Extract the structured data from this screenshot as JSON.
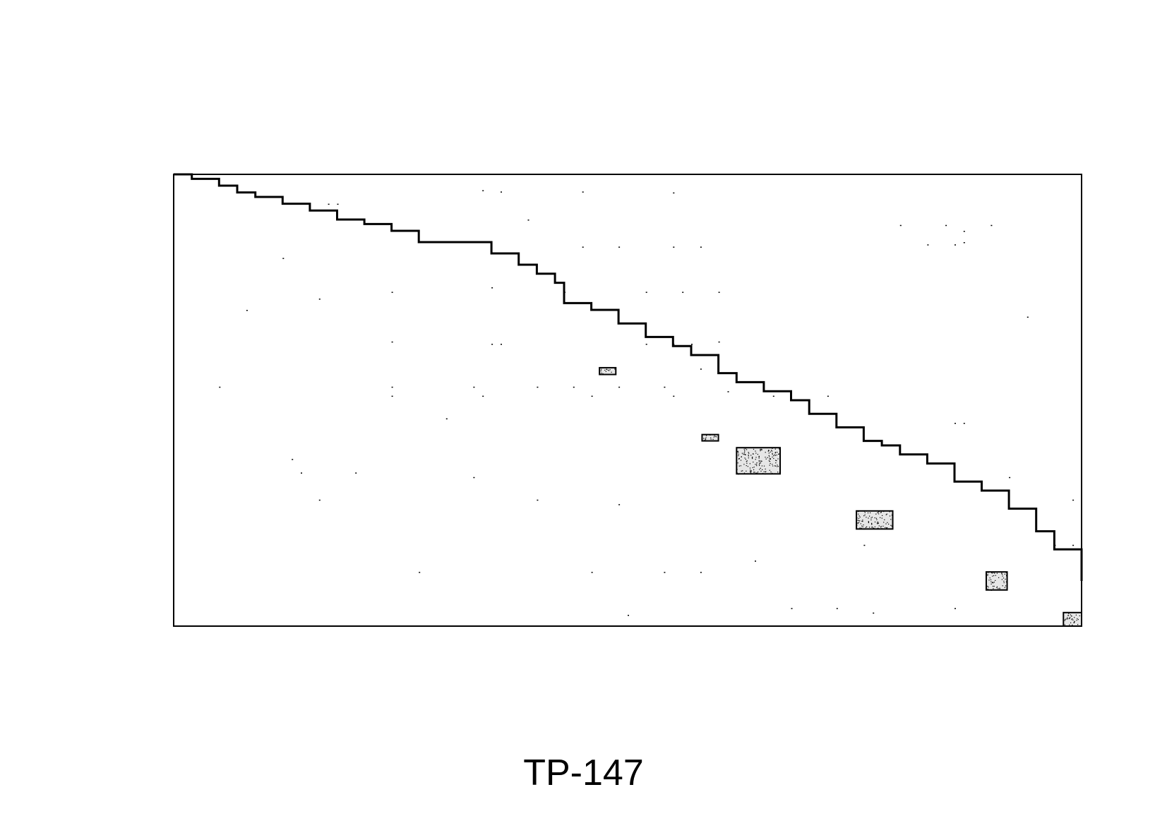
{
  "caption": "TP-147",
  "colors": {
    "ink": "#000000",
    "background": "#ffffff",
    "block_fill": "#e6e6e6"
  },
  "chart_data": {
    "type": "scatter",
    "description_kind": "sparse-matrix-pattern",
    "title": "",
    "xlabel": "",
    "ylabel": "",
    "xlim": [
      0,
      1
    ],
    "ylim": [
      0,
      1
    ],
    "y_direction": "down",
    "axes_visible": false,
    "grid": false,
    "legend": "none",
    "diagonal_band": [
      [
        0.0,
        0.0
      ],
      [
        0.02,
        0.01
      ],
      [
        0.05,
        0.025
      ],
      [
        0.07,
        0.04
      ],
      [
        0.09,
        0.05
      ],
      [
        0.12,
        0.065
      ],
      [
        0.15,
        0.08
      ],
      [
        0.18,
        0.1
      ],
      [
        0.21,
        0.11
      ],
      [
        0.24,
        0.125
      ],
      [
        0.27,
        0.15
      ],
      [
        0.32,
        0.15
      ],
      [
        0.35,
        0.175
      ],
      [
        0.38,
        0.2
      ],
      [
        0.4,
        0.22
      ],
      [
        0.42,
        0.24
      ],
      [
        0.43,
        0.285
      ],
      [
        0.46,
        0.3
      ],
      [
        0.49,
        0.33
      ],
      [
        0.52,
        0.36
      ],
      [
        0.55,
        0.38
      ],
      [
        0.57,
        0.4
      ],
      [
        0.6,
        0.44
      ],
      [
        0.62,
        0.46
      ],
      [
        0.65,
        0.48
      ],
      [
        0.68,
        0.5
      ],
      [
        0.7,
        0.53
      ],
      [
        0.73,
        0.56
      ],
      [
        0.76,
        0.59
      ],
      [
        0.78,
        0.6
      ],
      [
        0.8,
        0.62
      ],
      [
        0.83,
        0.64
      ],
      [
        0.86,
        0.68
      ],
      [
        0.89,
        0.7
      ],
      [
        0.92,
        0.74
      ],
      [
        0.95,
        0.79
      ],
      [
        0.97,
        0.83
      ],
      [
        1.0,
        0.9
      ]
    ],
    "blocks": [
      {
        "x": 0.469,
        "y": 0.428,
        "w": 0.018,
        "h": 0.015
      },
      {
        "x": 0.582,
        "y": 0.576,
        "w": 0.018,
        "h": 0.014
      },
      {
        "x": 0.62,
        "y": 0.605,
        "w": 0.048,
        "h": 0.058
      },
      {
        "x": 0.752,
        "y": 0.745,
        "w": 0.04,
        "h": 0.04
      },
      {
        "x": 0.895,
        "y": 0.88,
        "w": 0.023,
        "h": 0.04
      },
      {
        "x": 0.98,
        "y": 0.97,
        "w": 0.02,
        "h": 0.03
      }
    ],
    "scatter_points": [
      [
        0.17,
        0.065
      ],
      [
        0.18,
        0.065
      ],
      [
        0.34,
        0.035
      ],
      [
        0.36,
        0.038
      ],
      [
        0.45,
        0.038
      ],
      [
        0.55,
        0.04
      ],
      [
        0.45,
        0.16
      ],
      [
        0.49,
        0.16
      ],
      [
        0.55,
        0.16
      ],
      [
        0.58,
        0.16
      ],
      [
        0.8,
        0.112
      ],
      [
        0.85,
        0.112
      ],
      [
        0.9,
        0.112
      ],
      [
        0.87,
        0.15
      ],
      [
        0.12,
        0.185
      ],
      [
        0.39,
        0.1
      ],
      [
        0.16,
        0.275
      ],
      [
        0.24,
        0.26
      ],
      [
        0.35,
        0.25
      ],
      [
        0.43,
        0.26
      ],
      [
        0.52,
        0.26
      ],
      [
        0.56,
        0.26
      ],
      [
        0.6,
        0.26
      ],
      [
        0.94,
        0.315
      ],
      [
        0.24,
        0.37
      ],
      [
        0.35,
        0.375
      ],
      [
        0.36,
        0.375
      ],
      [
        0.52,
        0.375
      ],
      [
        0.55,
        0.375
      ],
      [
        0.57,
        0.375
      ],
      [
        0.6,
        0.37
      ],
      [
        0.05,
        0.47
      ],
      [
        0.24,
        0.47
      ],
      [
        0.24,
        0.49
      ],
      [
        0.33,
        0.47
      ],
      [
        0.34,
        0.49
      ],
      [
        0.4,
        0.47
      ],
      [
        0.44,
        0.47
      ],
      [
        0.46,
        0.49
      ],
      [
        0.49,
        0.47
      ],
      [
        0.54,
        0.47
      ],
      [
        0.55,
        0.49
      ],
      [
        0.61,
        0.48
      ],
      [
        0.66,
        0.49
      ],
      [
        0.72,
        0.49
      ],
      [
        0.86,
        0.55
      ],
      [
        0.87,
        0.55
      ],
      [
        0.13,
        0.63
      ],
      [
        0.14,
        0.66
      ],
      [
        0.33,
        0.67
      ],
      [
        0.92,
        0.67
      ],
      [
        0.99,
        0.72
      ],
      [
        0.16,
        0.72
      ],
      [
        0.49,
        0.73
      ],
      [
        0.76,
        0.82
      ],
      [
        0.97,
        0.82
      ],
      [
        0.99,
        0.82
      ],
      [
        0.27,
        0.88
      ],
      [
        0.46,
        0.88
      ],
      [
        0.54,
        0.88
      ],
      [
        0.58,
        0.88
      ],
      [
        0.64,
        0.855
      ],
      [
        0.5,
        0.975
      ],
      [
        0.68,
        0.96
      ],
      [
        0.73,
        0.96
      ],
      [
        0.77,
        0.97
      ],
      [
        0.86,
        0.96
      ],
      [
        0.83,
        0.155
      ],
      [
        0.86,
        0.155
      ],
      [
        0.87,
        0.125
      ],
      [
        0.08,
        0.3
      ],
      [
        0.3,
        0.54
      ],
      [
        0.58,
        0.43
      ],
      [
        0.2,
        0.66
      ],
      [
        0.4,
        0.72
      ]
    ]
  }
}
